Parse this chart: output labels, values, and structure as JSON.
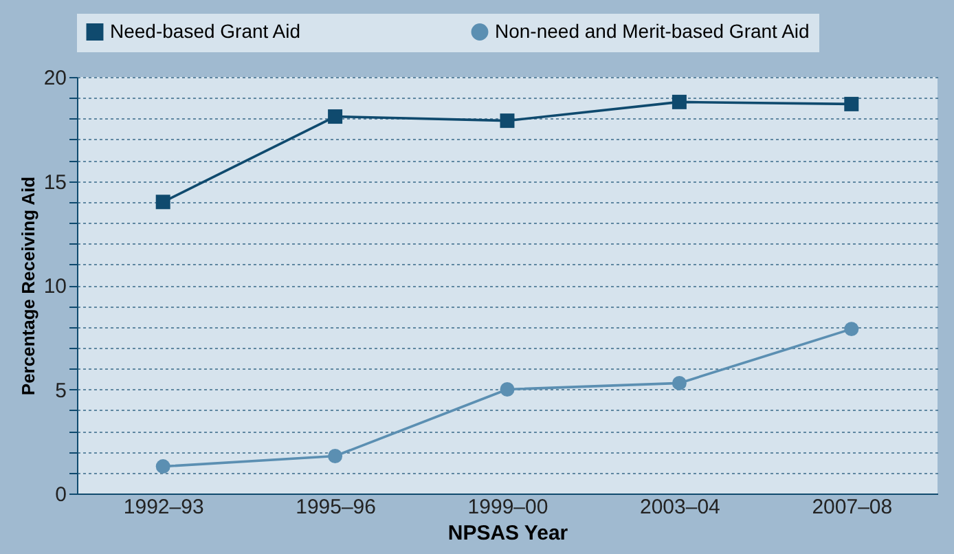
{
  "chart_data": {
    "type": "line",
    "categories": [
      "1992–93",
      "1995–96",
      "1999–00",
      "2003–04",
      "2007–08"
    ],
    "xlabel": "NPSAS Year",
    "ylabel": "Percentage Receiving Aid",
    "series": [
      {
        "name": "Need-based Grant Aid",
        "color": "#0f4a6e",
        "marker": "square",
        "values": [
          14.0,
          18.1,
          17.9,
          18.8,
          18.7
        ]
      },
      {
        "name": "Non-need and Merit-based Grant Aid",
        "color": "#5b8fb2",
        "marker": "circle",
        "values": [
          1.3,
          1.8,
          5.0,
          5.3,
          7.9
        ]
      }
    ],
    "ylim": [
      0,
      20
    ],
    "yticks": [
      0,
      {
        "value": 1,
        "label": null
      },
      {
        "value": 2,
        "label": null
      },
      {
        "value": 3,
        "label": null
      },
      {
        "value": 4,
        "label": null
      },
      5,
      {
        "value": 6,
        "label": null
      },
      {
        "value": 7,
        "label": null
      },
      {
        "value": 8,
        "label": null
      },
      {
        "value": 9,
        "label": null
      },
      10,
      {
        "value": 11,
        "label": null
      },
      {
        "value": 12,
        "label": null
      },
      {
        "value": 13,
        "label": null
      },
      {
        "value": 14,
        "label": null
      },
      15,
      {
        "value": 16,
        "label": null
      },
      {
        "value": 17,
        "label": null
      },
      {
        "value": 18,
        "label": null
      },
      {
        "value": 19,
        "label": null
      },
      20
    ],
    "grid": "y",
    "legend": "top",
    "line_style": "solid"
  }
}
